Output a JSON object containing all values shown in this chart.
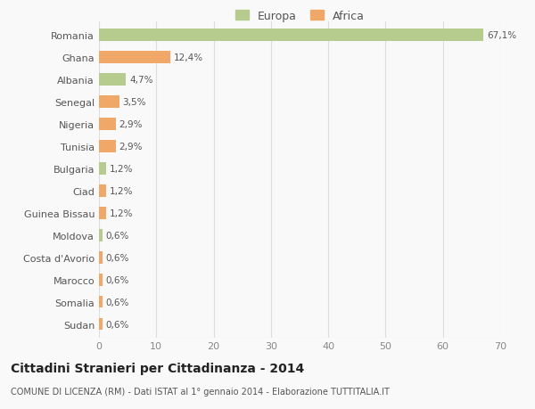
{
  "countries": [
    "Romania",
    "Ghana",
    "Albania",
    "Senegal",
    "Nigeria",
    "Tunisia",
    "Bulgaria",
    "Ciad",
    "Guinea Bissau",
    "Moldova",
    "Costa d'Avorio",
    "Marocco",
    "Somalia",
    "Sudan"
  ],
  "values": [
    67.1,
    12.4,
    4.7,
    3.5,
    2.9,
    2.9,
    1.2,
    1.2,
    1.2,
    0.6,
    0.6,
    0.6,
    0.6,
    0.6
  ],
  "labels": [
    "67,1%",
    "12,4%",
    "4,7%",
    "3,5%",
    "2,9%",
    "2,9%",
    "1,2%",
    "1,2%",
    "1,2%",
    "0,6%",
    "0,6%",
    "0,6%",
    "0,6%",
    "0,6%"
  ],
  "continents": [
    "Europa",
    "Africa",
    "Europa",
    "Africa",
    "Africa",
    "Africa",
    "Europa",
    "Africa",
    "Africa",
    "Europa",
    "Africa",
    "Africa",
    "Africa",
    "Africa"
  ],
  "color_europa": "#b5cc8e",
  "color_africa": "#f0a868",
  "background_color": "#f9f9f9",
  "title": "Cittadini Stranieri per Cittadinanza - 2014",
  "subtitle": "COMUNE DI LICENZA (RM) - Dati ISTAT al 1° gennaio 2014 - Elaborazione TUTTITALIA.IT",
  "legend_europa": "Europa",
  "legend_africa": "Africa",
  "xlim": [
    0,
    70
  ],
  "xticks": [
    0,
    10,
    20,
    30,
    40,
    50,
    60,
    70
  ]
}
